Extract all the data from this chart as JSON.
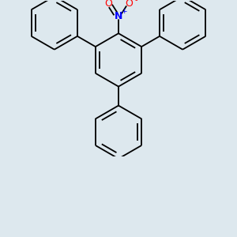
{
  "background_color": "#dde8ee",
  "bond_color": "#000000",
  "bond_width": 1.3,
  "N_color": "#0000ff",
  "O_color": "#ff0000",
  "figsize": [
    3.0,
    3.0
  ],
  "dpi": 100,
  "label_N": "N",
  "label_N_charge": "+",
  "label_O1": "O",
  "label_O2": "O",
  "label_O2_charge": "-",
  "label_O_methoxy": "O"
}
